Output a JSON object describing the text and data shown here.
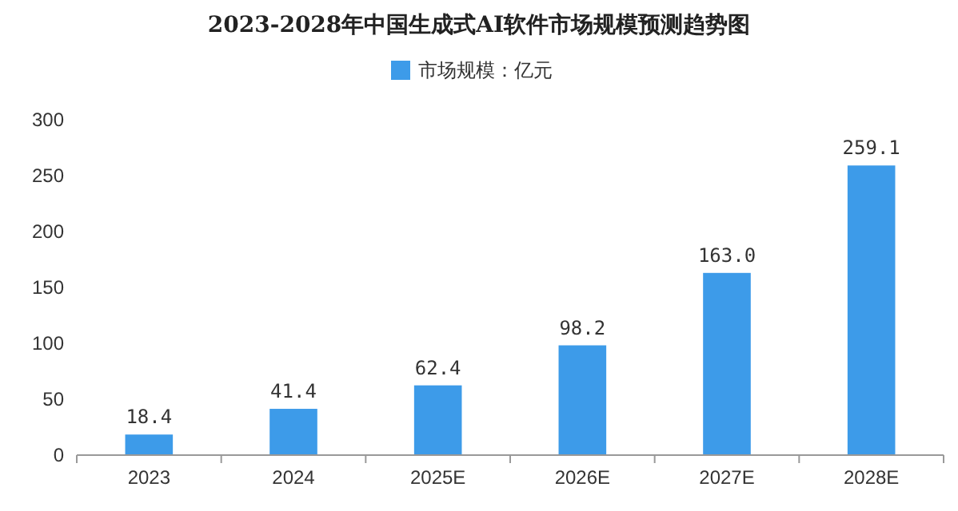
{
  "chart_data": {
    "type": "bar",
    "title": "2023-2028年中国生成式AI软件市场规模预测趋势图",
    "categories": [
      "2023",
      "2024",
      "2025E",
      "2026E",
      "2027E",
      "2028E"
    ],
    "series": [
      {
        "name": "市场规模：亿元",
        "color": "#3d9be9",
        "values": [
          18.4,
          41.4,
          62.4,
          98.2,
          163.0,
          259.1
        ],
        "value_labels": [
          "18.4",
          "41.4",
          "62.4",
          "98.2",
          "163.0",
          "259.1"
        ]
      }
    ],
    "ylim": [
      0,
      300
    ],
    "yticks": [
      0,
      50,
      100,
      150,
      200,
      250,
      300
    ],
    "grid": false,
    "legend": "top"
  }
}
